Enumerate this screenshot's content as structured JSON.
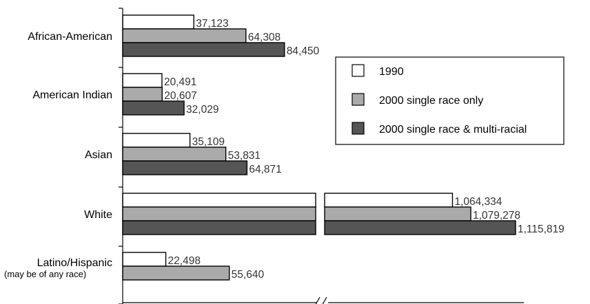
{
  "chart_data": {
    "type": "bar",
    "orientation": "horizontal",
    "title": "",
    "xlabel": "",
    "ylabel": "",
    "axis_break": true,
    "grid": false,
    "legend_position": "right",
    "categories": [
      "African-American",
      "American Indian",
      "Asian",
      "White",
      "Latino/Hispanic"
    ],
    "category_notes": [
      "",
      "",
      "",
      "",
      "(may be of any race)"
    ],
    "series": [
      {
        "name": "1990",
        "color": "#ffffff",
        "values": [
          37123,
          20491,
          35109,
          1064334,
          22498
        ],
        "labels": [
          "37,123",
          "20,491",
          "35,109",
          "1,064,334",
          "22,498"
        ]
      },
      {
        "name": "2000 single race only",
        "color": "#aaaaaa",
        "values": [
          64308,
          20607,
          53831,
          1079278,
          55640
        ],
        "labels": [
          "64,308",
          "20,607",
          "53,831",
          "1,079,278",
          "55,640"
        ]
      },
      {
        "name": "2000 single race & multi-racial",
        "color": "#555555",
        "values": [
          84450,
          32029,
          64871,
          1115819,
          null
        ],
        "labels": [
          "84,450",
          "32,029",
          "64,871",
          "1,115,819",
          ""
        ]
      }
    ]
  }
}
